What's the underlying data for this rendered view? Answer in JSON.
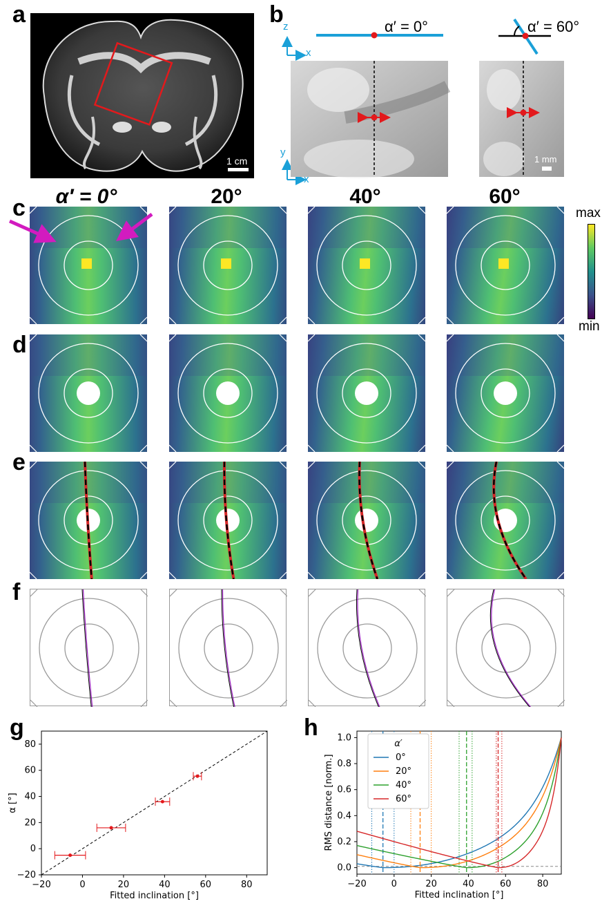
{
  "panel_labels": [
    "a",
    "b",
    "c",
    "d",
    "e",
    "f",
    "g",
    "h"
  ],
  "panel_a": {
    "scalebar": "1 cm"
  },
  "panel_b": {
    "angle_0": "α′ = 0°",
    "angle_60": "α′ = 60°",
    "axis_z": "z",
    "axis_x_top": "x",
    "axis_y": "y",
    "axis_x_bottom": "x",
    "scalebar": "1 mm"
  },
  "column_titles": [
    "α′ = 0°",
    "20°",
    "40°",
    "60°"
  ],
  "colorbar": {
    "max": "max",
    "min": "min"
  },
  "chart_g": {
    "type": "scatter",
    "xlabel": "Fitted inclination [°]",
    "ylabel": "α [°]",
    "xlim": [
      -20,
      90
    ],
    "ylim": [
      -20,
      90
    ],
    "xticks": [
      "−20",
      "0",
      "20",
      "40",
      "60",
      "80"
    ],
    "yticks": [
      "−20",
      "0",
      "20",
      "40",
      "60",
      "80"
    ],
    "points": [
      {
        "x": -6,
        "y": -5,
        "xerr": 7.5
      },
      {
        "x": 14,
        "y": 16,
        "xerr": 7
      },
      {
        "x": 39,
        "y": 36,
        "xerr": 3.5
      },
      {
        "x": 56,
        "y": 55.5,
        "xerr": 2
      }
    ],
    "identity_line": true
  },
  "chart_h": {
    "type": "line",
    "xlabel": "Fitted inclination [°]",
    "ylabel": "RMS distance [norm.]",
    "xlim": [
      -20,
      90
    ],
    "ylim": [
      -0.05,
      1.05
    ],
    "xticks": [
      "−20",
      "0",
      "20",
      "40",
      "60",
      "80"
    ],
    "yticks": [
      "0.0",
      "0.2",
      "0.4",
      "0.6",
      "0.8",
      "1.0"
    ],
    "legend_title": "α′",
    "series": [
      {
        "name": "0°",
        "color": "#1f77b4",
        "min_x": -6,
        "ci": [
          -12,
          0
        ]
      },
      {
        "name": "20°",
        "color": "#ff7f0e",
        "min_x": 14,
        "ci": [
          9,
          20
        ]
      },
      {
        "name": "40°",
        "color": "#2ca02c",
        "min_x": 39,
        "ci": [
          35,
          42
        ]
      },
      {
        "name": "60°",
        "color": "#d62728",
        "min_x": 56,
        "ci": [
          55,
          58
        ]
      }
    ],
    "threshold": 0.01
  },
  "colors": {
    "accent_blue": "#1aa0d8",
    "red": "#e3191c",
    "magenta": "#d21bbf"
  }
}
